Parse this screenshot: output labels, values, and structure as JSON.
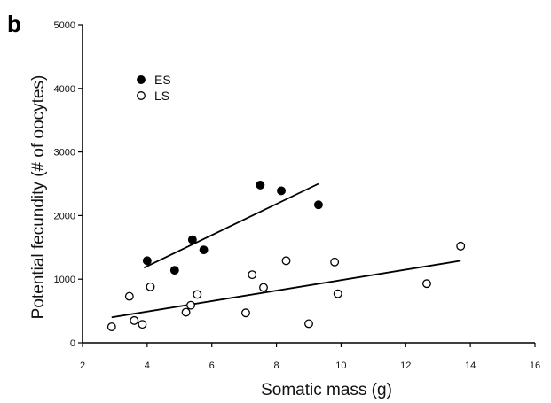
{
  "panel_label": "b",
  "chart_data": {
    "type": "scatter",
    "xlabel": "Somatic mass (g)",
    "ylabel": "Potential fecundity (# of oocytes)",
    "xlim": [
      2,
      16
    ],
    "ylim": [
      0,
      5000
    ],
    "xticks": [
      2,
      4,
      6,
      8,
      10,
      12,
      14,
      16
    ],
    "yticks": [
      0,
      1000,
      2000,
      3000,
      4000,
      5000
    ],
    "grid": false,
    "legend_position": "top-left",
    "series": [
      {
        "name": "ES",
        "marker": "filled-circle",
        "color": "#000000",
        "points": [
          {
            "x": 4.0,
            "y": 1290
          },
          {
            "x": 4.85,
            "y": 1140
          },
          {
            "x": 5.4,
            "y": 1620
          },
          {
            "x": 5.75,
            "y": 1460
          },
          {
            "x": 7.5,
            "y": 2480
          },
          {
            "x": 8.15,
            "y": 2390
          },
          {
            "x": 9.3,
            "y": 2170
          }
        ],
        "trend": {
          "x": [
            3.9,
            9.3
          ],
          "y": [
            1180,
            2500
          ]
        }
      },
      {
        "name": "LS",
        "marker": "open-circle",
        "color": "#000000",
        "points": [
          {
            "x": 2.9,
            "y": 250
          },
          {
            "x": 3.45,
            "y": 730
          },
          {
            "x": 3.6,
            "y": 350
          },
          {
            "x": 3.85,
            "y": 290
          },
          {
            "x": 4.1,
            "y": 880
          },
          {
            "x": 5.2,
            "y": 480
          },
          {
            "x": 5.35,
            "y": 590
          },
          {
            "x": 5.55,
            "y": 760
          },
          {
            "x": 7.05,
            "y": 470
          },
          {
            "x": 7.25,
            "y": 1070
          },
          {
            "x": 7.6,
            "y": 870
          },
          {
            "x": 8.3,
            "y": 1290
          },
          {
            "x": 9.0,
            "y": 300
          },
          {
            "x": 9.8,
            "y": 1270
          },
          {
            "x": 9.9,
            "y": 770
          },
          {
            "x": 12.65,
            "y": 930
          },
          {
            "x": 13.7,
            "y": 1520
          }
        ],
        "trend": {
          "x": [
            2.9,
            13.7
          ],
          "y": [
            400,
            1290
          ]
        }
      }
    ]
  }
}
